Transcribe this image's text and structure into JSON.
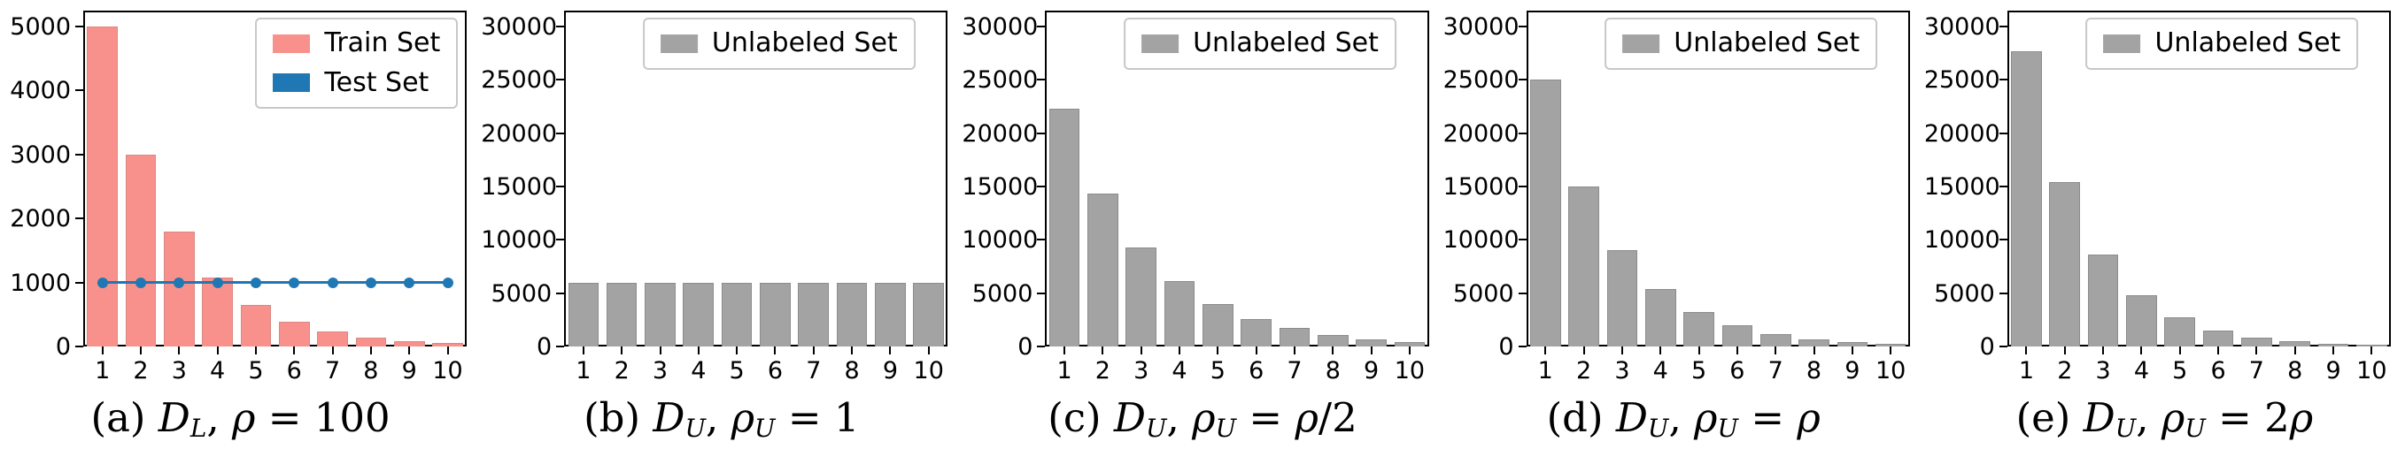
{
  "figure": {
    "background": "#ffffff",
    "description": "Class distribution histograms of labeled, test and unlabeled sets over 10 classes"
  },
  "chart_data": [
    {
      "panel_id": "a",
      "type": "bar",
      "categories": [
        "1",
        "2",
        "3",
        "4",
        "5",
        "6",
        "7",
        "8",
        "9",
        "10"
      ],
      "ylim": [
        0,
        5250
      ],
      "yticks": [
        0,
        1000,
        2000,
        3000,
        4000,
        5000
      ],
      "series": [
        {
          "name": "Train Set",
          "kind": "bar",
          "color": "#f8918b",
          "edge": "#d98984",
          "values": [
            5000,
            3000,
            1800,
            1080,
            650,
            390,
            235,
            140,
            85,
            50
          ]
        },
        {
          "name": "Test Set",
          "kind": "line",
          "color": "#1f77b4",
          "values": [
            1000,
            1000,
            1000,
            1000,
            1000,
            1000,
            1000,
            1000,
            1000,
            1000
          ]
        }
      ],
      "legend": [
        "Train Set",
        "Test Set"
      ],
      "legend_position": "upper right",
      "caption_plain": "(a) D_L, ρ = 100",
      "caption_segments": [
        {
          "text": "(a) ",
          "style": "roman"
        },
        {
          "text": "D",
          "style": "cal"
        },
        {
          "text": "L",
          "style": "sub"
        },
        {
          "text": ", ",
          "style": "roman"
        },
        {
          "text": "ρ",
          "style": "italic"
        },
        {
          "text": " = 100",
          "style": "roman"
        }
      ]
    },
    {
      "panel_id": "b",
      "type": "bar",
      "categories": [
        "1",
        "2",
        "3",
        "4",
        "5",
        "6",
        "7",
        "8",
        "9",
        "10"
      ],
      "ylim": [
        0,
        31500
      ],
      "yticks": [
        0,
        5000,
        10000,
        15000,
        20000,
        25000,
        30000
      ],
      "series": [
        {
          "name": "Unlabeled Set",
          "kind": "bar",
          "color": "#a3a3a3",
          "edge": "#8c8c8c",
          "values": [
            6000,
            6000,
            6000,
            6000,
            6000,
            6000,
            6000,
            6000,
            6000,
            6000
          ]
        }
      ],
      "legend": [
        "Unlabeled Set"
      ],
      "legend_position": "upper center",
      "caption_plain": "(b) D_U, ρ_U = 1",
      "caption_segments": [
        {
          "text": "(b) ",
          "style": "roman"
        },
        {
          "text": "D",
          "style": "cal"
        },
        {
          "text": "U",
          "style": "sub"
        },
        {
          "text": ", ",
          "style": "roman"
        },
        {
          "text": "ρ",
          "style": "italic"
        },
        {
          "text": "U",
          "style": "sub"
        },
        {
          "text": " = 1",
          "style": "roman"
        }
      ]
    },
    {
      "panel_id": "c",
      "type": "bar",
      "categories": [
        "1",
        "2",
        "3",
        "4",
        "5",
        "6",
        "7",
        "8",
        "9",
        "10"
      ],
      "ylim": [
        0,
        31500
      ],
      "yticks": [
        0,
        5000,
        10000,
        15000,
        20000,
        25000,
        30000
      ],
      "series": [
        {
          "name": "Unlabeled Set",
          "kind": "bar",
          "color": "#a3a3a3",
          "edge": "#8c8c8c",
          "values": [
            22300,
            14300,
            9300,
            6100,
            3950,
            2600,
            1700,
            1100,
            680,
            440
          ]
        }
      ],
      "legend": [
        "Unlabeled Set"
      ],
      "legend_position": "upper center",
      "caption_plain": "(c) D_U, ρ_U = ρ/2",
      "caption_segments": [
        {
          "text": "(c) ",
          "style": "roman"
        },
        {
          "text": "D",
          "style": "cal"
        },
        {
          "text": "U",
          "style": "sub"
        },
        {
          "text": ", ",
          "style": "roman"
        },
        {
          "text": "ρ",
          "style": "italic"
        },
        {
          "text": "U",
          "style": "sub"
        },
        {
          "text": " = ",
          "style": "roman"
        },
        {
          "text": "ρ",
          "style": "italic"
        },
        {
          "text": "/2",
          "style": "roman"
        }
      ]
    },
    {
      "panel_id": "d",
      "type": "bar",
      "categories": [
        "1",
        "2",
        "3",
        "4",
        "5",
        "6",
        "7",
        "8",
        "9",
        "10"
      ],
      "ylim": [
        0,
        31500
      ],
      "yticks": [
        0,
        5000,
        10000,
        15000,
        20000,
        25000,
        30000
      ],
      "series": [
        {
          "name": "Unlabeled Set",
          "kind": "bar",
          "color": "#a3a3a3",
          "edge": "#8c8c8c",
          "values": [
            25000,
            15000,
            9000,
            5400,
            3250,
            1950,
            1150,
            700,
            420,
            250
          ]
        }
      ],
      "legend": [
        "Unlabeled Set"
      ],
      "legend_position": "upper center",
      "caption_plain": "(d) D_U, ρ_U = ρ",
      "caption_segments": [
        {
          "text": "(d) ",
          "style": "roman"
        },
        {
          "text": "D",
          "style": "cal"
        },
        {
          "text": "U",
          "style": "sub"
        },
        {
          "text": ", ",
          "style": "roman"
        },
        {
          "text": "ρ",
          "style": "italic"
        },
        {
          "text": "U",
          "style": "sub"
        },
        {
          "text": " = ",
          "style": "roman"
        },
        {
          "text": "ρ",
          "style": "italic"
        }
      ]
    },
    {
      "panel_id": "e",
      "type": "bar",
      "categories": [
        "1",
        "2",
        "3",
        "4",
        "5",
        "6",
        "7",
        "8",
        "9",
        "10"
      ],
      "ylim": [
        0,
        31500
      ],
      "yticks": [
        0,
        5000,
        10000,
        15000,
        20000,
        25000,
        30000
      ],
      "series": [
        {
          "name": "Unlabeled Set",
          "kind": "bar",
          "color": "#a3a3a3",
          "edge": "#8c8c8c",
          "values": [
            27700,
            15400,
            8600,
            4800,
            2700,
            1500,
            830,
            460,
            260,
            140
          ]
        }
      ],
      "legend": [
        "Unlabeled Set"
      ],
      "legend_position": "upper center",
      "caption_plain": "(e) D_U, ρ_U = 2ρ",
      "caption_segments": [
        {
          "text": "(e) ",
          "style": "roman"
        },
        {
          "text": "D",
          "style": "cal"
        },
        {
          "text": "U",
          "style": "sub"
        },
        {
          "text": ", ",
          "style": "roman"
        },
        {
          "text": "ρ",
          "style": "italic"
        },
        {
          "text": "U",
          "style": "sub"
        },
        {
          "text": " = 2",
          "style": "roman"
        },
        {
          "text": "ρ",
          "style": "italic"
        }
      ]
    }
  ]
}
